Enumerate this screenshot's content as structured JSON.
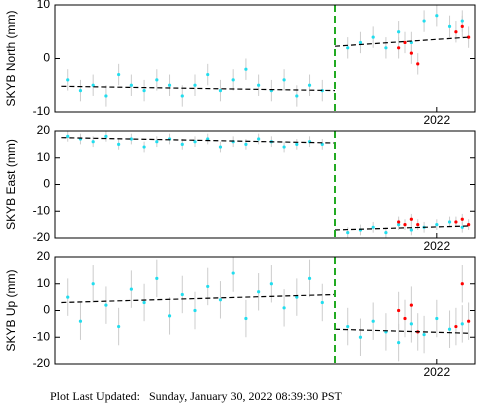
{
  "chart_data": [
    {
      "type": "scatter",
      "ylabel": "SKYB North (mm)",
      "xlim": [
        2019.0,
        2022.3
      ],
      "xticks": [
        2022
      ],
      "ylim": [
        -10,
        10
      ],
      "yticks": [
        -10,
        0,
        10
      ],
      "series": [
        {
          "color": "#22ddee",
          "error": 2,
          "x": [
            2019.1,
            2019.2,
            2019.3,
            2019.4,
            2019.5,
            2019.6,
            2019.7,
            2019.8,
            2019.9,
            2020.0,
            2020.1,
            2020.2,
            2020.3,
            2020.4,
            2020.5,
            2020.6,
            2020.7,
            2020.8,
            2020.9,
            2021.0,
            2021.1,
            2021.3,
            2021.4,
            2021.5,
            2021.6,
            2021.7,
            2021.8,
            2021.9,
            2022.0,
            2022.1,
            2022.2
          ],
          "values": [
            -4,
            -6,
            -5,
            -7,
            -3,
            -5,
            -6,
            -4,
            -5,
            -7,
            -5,
            -3,
            -6,
            -4,
            -2,
            -5,
            -6,
            -4,
            -7,
            -5,
            -6,
            2,
            3,
            4,
            2,
            5,
            3,
            7,
            8,
            6,
            7
          ]
        },
        {
          "color": "#ff0000",
          "error": 2,
          "x": [
            2021.7,
            2021.75,
            2021.8,
            2021.85,
            2022.15,
            2022.2,
            2022.25
          ],
          "values": [
            2,
            3,
            1,
            -1,
            5,
            6,
            4
          ]
        }
      ],
      "model": {
        "color": "#000000",
        "x": [
          2019.05,
          2021.2,
          null,
          2021.2,
          2022.25
        ],
        "values": [
          -5.2,
          -6,
          null,
          2.3,
          4
        ]
      },
      "offset": {
        "color": "#22aa22",
        "x": 2021.2
      }
    },
    {
      "type": "scatter",
      "ylabel": "SKYB East (mm)",
      "xlim": [
        2019.0,
        2022.3
      ],
      "xticks": [
        2022
      ],
      "ylim": [
        -20,
        20
      ],
      "yticks": [
        -20,
        -10,
        0,
        10,
        20
      ],
      "series": [
        {
          "color": "#22ddee",
          "error": 2,
          "x": [
            2019.1,
            2019.2,
            2019.3,
            2019.4,
            2019.5,
            2019.6,
            2019.7,
            2019.8,
            2019.9,
            2020.0,
            2020.1,
            2020.2,
            2020.3,
            2020.4,
            2020.5,
            2020.6,
            2020.7,
            2020.8,
            2020.9,
            2021.0,
            2021.1,
            2021.3,
            2021.4,
            2021.5,
            2021.6,
            2021.7,
            2021.8,
            2021.9,
            2022.0,
            2022.1,
            2022.2
          ],
          "values": [
            18,
            17,
            16,
            18,
            15,
            17,
            14,
            16,
            17,
            15,
            16,
            17,
            14,
            16,
            15,
            17,
            16,
            14,
            15,
            16,
            15,
            -18,
            -17,
            -16,
            -18,
            -15,
            -17,
            -16,
            -15,
            -14,
            -16
          ]
        },
        {
          "color": "#ff0000",
          "error": 2,
          "x": [
            2021.7,
            2021.75,
            2021.8,
            2021.85,
            2022.15,
            2022.2,
            2022.25
          ],
          "values": [
            -14,
            -15,
            -13,
            -15,
            -14,
            -13,
            -15
          ]
        }
      ],
      "model": {
        "color": "#000000",
        "x": [
          2019.05,
          2021.2,
          null,
          2021.2,
          2022.25
        ],
        "values": [
          17.5,
          15.5,
          null,
          -17,
          -15.5
        ]
      },
      "offset": {
        "color": "#22aa22",
        "x": 2021.2
      }
    },
    {
      "type": "scatter",
      "ylabel": "SKYB Up (mm)",
      "xlim": [
        2019.0,
        2022.3
      ],
      "xticks": [
        2022
      ],
      "ylim": [
        -20,
        20
      ],
      "yticks": [
        -20,
        -10,
        0,
        10,
        20
      ],
      "series": [
        {
          "color": "#22ddee",
          "error": 7,
          "x": [
            2019.1,
            2019.2,
            2019.3,
            2019.4,
            2019.5,
            2019.6,
            2019.7,
            2019.8,
            2019.9,
            2020.0,
            2020.1,
            2020.2,
            2020.3,
            2020.4,
            2020.5,
            2020.6,
            2020.7,
            2020.8,
            2020.9,
            2021.0,
            2021.1,
            2021.3,
            2021.4,
            2021.5,
            2021.6,
            2021.7,
            2021.8,
            2021.9,
            2022.0,
            2022.1,
            2022.2
          ],
          "values": [
            5,
            -4,
            10,
            2,
            -6,
            8,
            3,
            12,
            -2,
            6,
            0,
            9,
            4,
            14,
            -3,
            7,
            10,
            1,
            5,
            12,
            3,
            -6,
            -10,
            -4,
            -8,
            -12,
            -5,
            -9,
            -3,
            -7,
            -5
          ]
        },
        {
          "color": "#ff0000",
          "error": 7,
          "x": [
            2021.7,
            2021.75,
            2021.8,
            2021.85,
            2022.15,
            2022.2,
            2022.25
          ],
          "values": [
            0,
            -3,
            2,
            -8,
            -6,
            10,
            -4
          ]
        }
      ],
      "model": {
        "color": "#000000",
        "x": [
          2019.05,
          2021.2,
          null,
          2021.2,
          2022.25
        ],
        "values": [
          3,
          6,
          null,
          -7,
          -8.5
        ]
      },
      "offset": {
        "color": "#22aa22",
        "x": 2021.2
      }
    }
  ],
  "footer": "Plot Last Updated:   Sunday, January 30, 2022 08:39:30 PST"
}
